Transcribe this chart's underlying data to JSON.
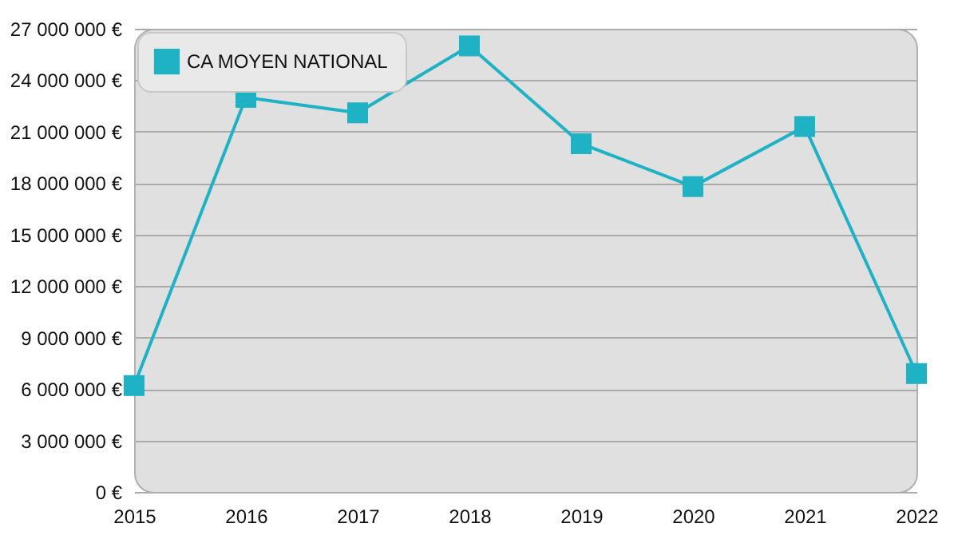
{
  "chart_data": {
    "type": "line",
    "categories": [
      "2015",
      "2016",
      "2017",
      "2018",
      "2019",
      "2020",
      "2021",
      "2022"
    ],
    "series": [
      {
        "name": "CA MOYEN NATIONAL",
        "color": "#1fb2c4",
        "values": [
          6200000,
          23000000,
          22100000,
          26000000,
          20300000,
          17800000,
          21300000,
          6900000
        ]
      }
    ],
    "ylim": [
      0,
      27000000
    ],
    "yticks": [
      {
        "value": 0,
        "label": "0 €"
      },
      {
        "value": 3000000,
        "label": "3 000 000 €"
      },
      {
        "value": 6000000,
        "label": "6 000 000 €"
      },
      {
        "value": 9000000,
        "label": "9 000 000 €"
      },
      {
        "value": 12000000,
        "label": "12 000 000 €"
      },
      {
        "value": 15000000,
        "label": "15 000 000 €"
      },
      {
        "value": 18000000,
        "label": "18 000 000 €"
      },
      {
        "value": 21000000,
        "label": "21 000 000 €"
      },
      {
        "value": 24000000,
        "label": "24 000 000 €"
      },
      {
        "value": 27000000,
        "label": "27 000 000 €"
      }
    ],
    "grid": "y",
    "legend": "top left",
    "marker": "square",
    "line_style": "solid"
  }
}
